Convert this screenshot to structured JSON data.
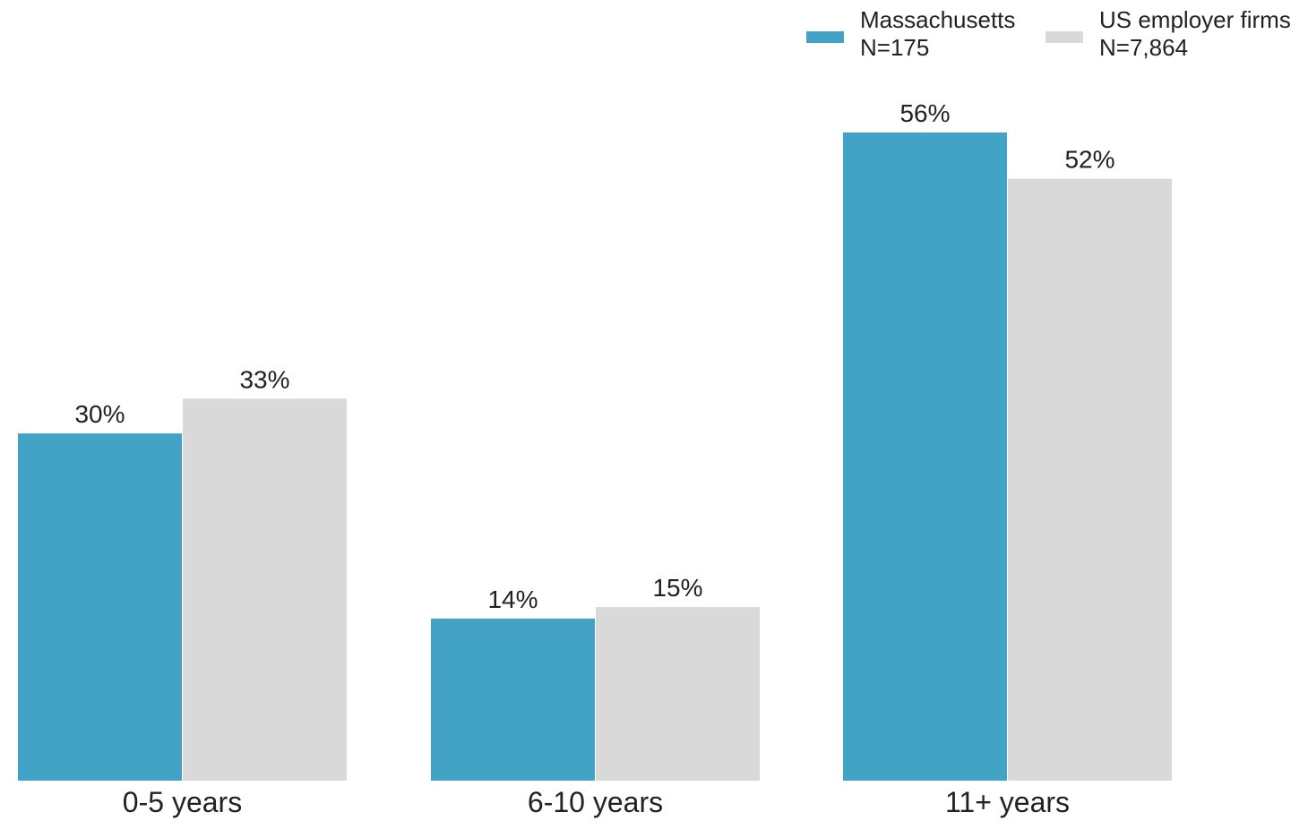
{
  "chart_data": {
    "type": "bar",
    "title": "",
    "xlabel": "",
    "ylabel": "",
    "categories": [
      "0-5 years",
      "6-10 years",
      "11+ years"
    ],
    "series": [
      {
        "name": "Massachusetts",
        "sample": "N=175",
        "color": "#42A3C6",
        "values": [
          30,
          14,
          56
        ],
        "labels": [
          "30%",
          "14%",
          "56%"
        ]
      },
      {
        "name": "US employer firms",
        "sample": "N=7,864",
        "color": "#D9D9D9",
        "values": [
          33,
          15,
          52
        ],
        "labels": [
          "33%",
          "15%",
          "52%"
        ]
      }
    ],
    "ylim": [
      0,
      56
    ],
    "grid": false,
    "legend_position": "top-right"
  }
}
